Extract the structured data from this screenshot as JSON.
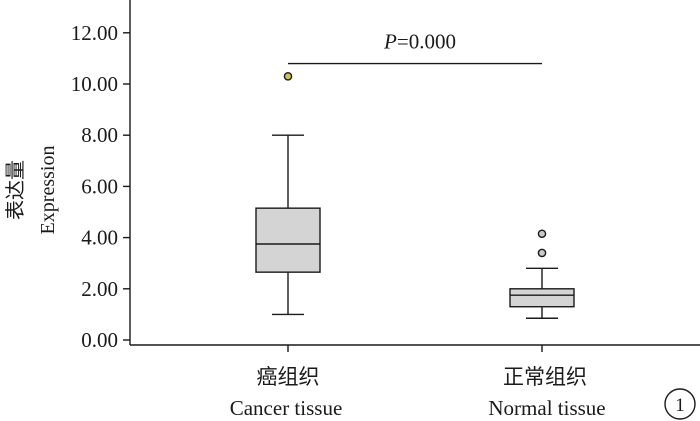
{
  "chart_data": {
    "type": "box",
    "ylabel_cn": "表达量",
    "ylabel_en": "Expression",
    "ylim": [
      0,
      13.5
    ],
    "yticks": [
      0,
      2,
      4,
      6,
      8,
      10,
      12
    ],
    "ytick_labels": [
      "0.00",
      "2.00",
      "4.00",
      "6.00",
      "8.00",
      "10.00",
      "12.00"
    ],
    "groups": [
      {
        "label_cn": "癌组织",
        "label_en": "Cancer tissue",
        "whisker_low": 1.0,
        "q1": 2.65,
        "median": 3.75,
        "q3": 5.15,
        "whisker_high": 8.0,
        "outliers": [
          10.3
        ],
        "outlier_color": "#c9c64a"
      },
      {
        "label_cn": "正常组织",
        "label_en": "Normal tissue",
        "whisker_low": 0.85,
        "q1": 1.3,
        "median": 1.75,
        "q3": 2.0,
        "whisker_high": 2.8,
        "outliers": [
          3.4,
          4.15
        ],
        "outlier_color": "#c8c8c8"
      }
    ],
    "annotation": {
      "p_italic": "P",
      "text": "=0.000",
      "y": 10.8
    },
    "panel_label": "1",
    "box_fill": "#d4d4d4"
  }
}
